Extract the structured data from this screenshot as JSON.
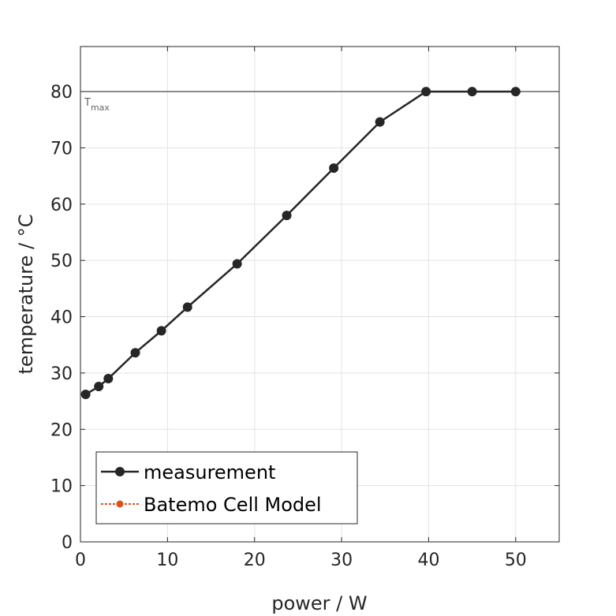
{
  "chart_data": {
    "type": "line",
    "xlabel": "power / W",
    "ylabel": "temperature / °C",
    "xlim": [
      0,
      55
    ],
    "ylim": [
      0,
      88
    ],
    "xticks": [
      0,
      10,
      20,
      30,
      40,
      50
    ],
    "yticks": [
      0,
      10,
      20,
      30,
      40,
      50,
      60,
      70,
      80
    ],
    "grid": true,
    "legend_position": "bottom-left",
    "series": [
      {
        "name": "measurement",
        "color": "#262626",
        "x": [
          0.6,
          2.1,
          3.2,
          6.3,
          9.3,
          12.3,
          18.0,
          23.7,
          29.1,
          34.4,
          39.7,
          45.0,
          50.0
        ],
        "y": [
          26.2,
          27.6,
          29.0,
          33.6,
          37.5,
          41.7,
          49.4,
          58.0,
          66.4,
          74.6,
          80.0,
          80.0,
          80.0
        ]
      },
      {
        "name": "Batemo Cell Model",
        "color": "#D95319",
        "x": [],
        "y": []
      }
    ],
    "annotations": [
      {
        "type": "hline",
        "y": 80,
        "label": "T",
        "label_sub": "max",
        "color": "#666666"
      }
    ]
  }
}
